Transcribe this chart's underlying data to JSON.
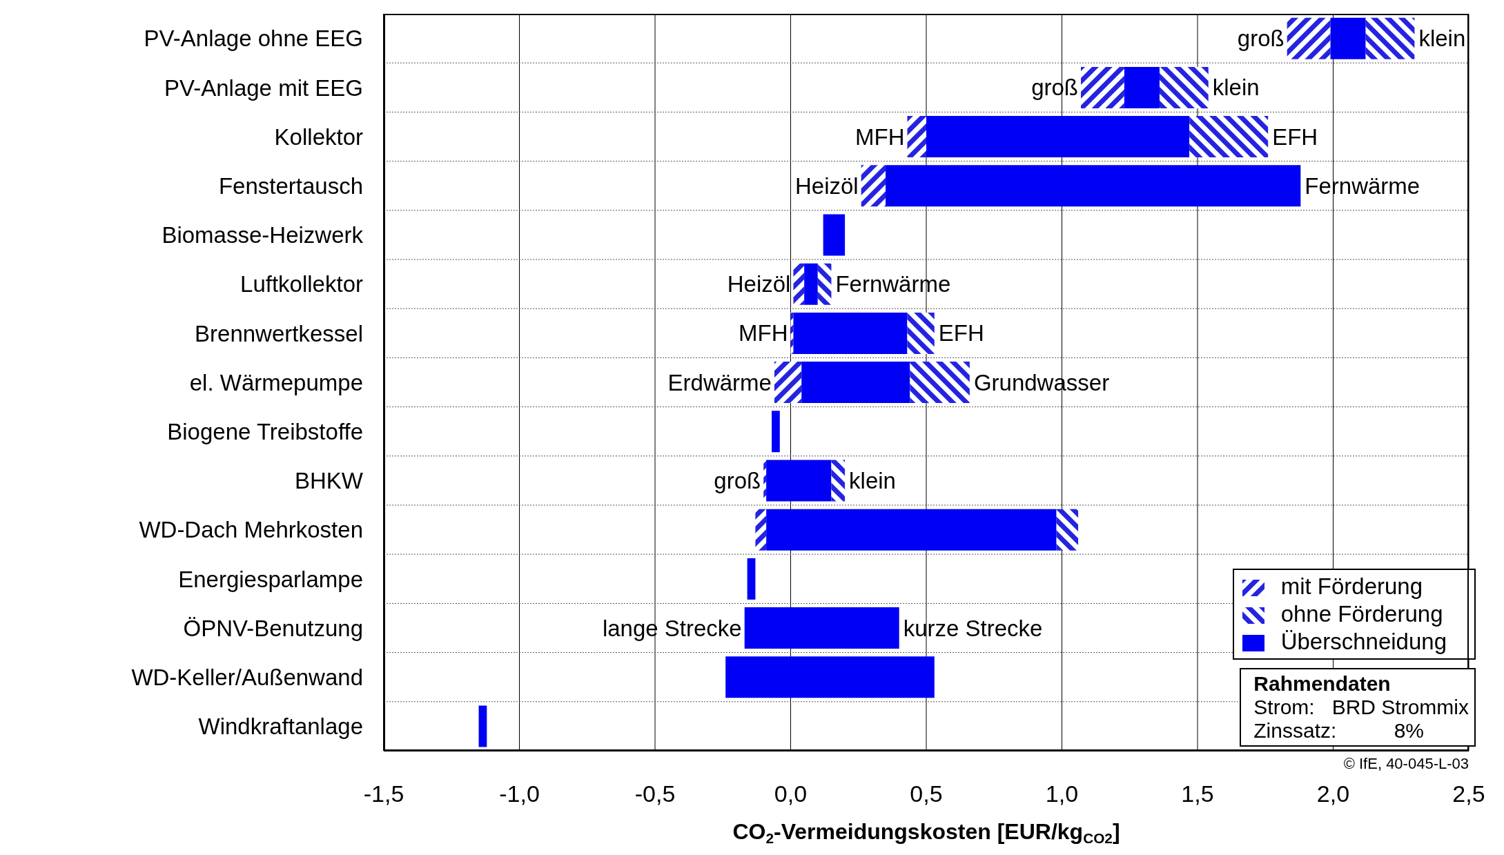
{
  "chart_data": {
    "type": "bar",
    "orientation": "horizontal",
    "categories": [
      "PV-Anlage ohne EEG",
      "PV-Anlage mit EEG",
      "Kollektor",
      "Fenstertausch",
      "Biomasse-Heizwerk",
      "Luftkollektor",
      "Brennwertkessel",
      "el. Wärmepumpe",
      "Biogene Treibstoffe",
      "BHKW",
      "WD-Dach Mehrkosten",
      "Energiesparlampe",
      "ÖPNV-Benutzung",
      "WD-Keller/Außenwand",
      "Windkraftanlage"
    ],
    "series": [
      {
        "name": "mit Förderung",
        "color": "#2424e0",
        "base": [
          1.83,
          1.07,
          0.43,
          0.26,
          null,
          0.01,
          0.0,
          -0.06,
          null,
          -0.1,
          -0.13,
          null,
          null,
          null,
          null
        ],
        "values": [
          0.16,
          0.16,
          0.07,
          0.09,
          null,
          0.04,
          0.01,
          0.1,
          null,
          0.01,
          0.04,
          null,
          null,
          null,
          null
        ]
      },
      {
        "name": "Überschneidung",
        "color": "#0000f5",
        "base": [
          1.99,
          1.23,
          0.5,
          0.35,
          0.12,
          0.05,
          0.01,
          0.04,
          -0.07,
          -0.09,
          -0.09,
          -0.16,
          -0.17,
          -0.24,
          -1.15
        ],
        "values": [
          0.13,
          0.13,
          0.97,
          1.53,
          0.08,
          0.05,
          0.42,
          0.4,
          0.03,
          0.24,
          1.07,
          0.03,
          0.57,
          0.77,
          0.03
        ]
      },
      {
        "name": "ohne Förderung",
        "color": "#2424e0",
        "base": [
          2.12,
          1.36,
          1.47,
          null,
          null,
          0.1,
          0.43,
          0.44,
          null,
          0.15,
          0.98,
          null,
          null,
          null,
          null
        ],
        "values": [
          0.18,
          0.18,
          0.29,
          null,
          null,
          0.05,
          0.1,
          0.22,
          null,
          0.05,
          0.08,
          null,
          null,
          null,
          null
        ]
      }
    ],
    "xlim": [
      -1.5,
      2.5
    ],
    "xticks": [
      {
        "value": -1.5,
        "label": "-1,5"
      },
      {
        "value": -1,
        "label": "-1,0"
      },
      {
        "value": -0.5,
        "label": "-0,5"
      },
      {
        "value": 0,
        "label": "0,0"
      },
      {
        "value": 0.5,
        "label": "0,5"
      },
      {
        "value": 1,
        "label": "1,0"
      },
      {
        "value": 1.5,
        "label": "1,5"
      },
      {
        "value": 2,
        "label": "2,0"
      },
      {
        "value": 2.5,
        "label": "2,5"
      }
    ],
    "xlabel": "CO$_{2}$-Vermeidungskosten [EUR/kg$_{CO2}$]",
    "grid": true,
    "legend": "bottom right",
    "annotations": [
      {
        "text": "groß",
        "x": 1.83,
        "y": "PV-Anlage ohne EEG"
      },
      {
        "text": "klein",
        "x": 2.3,
        "y": "PV-Anlage ohne EEG"
      },
      {
        "text": "groß",
        "x": 1.07,
        "y": "PV-Anlage mit EEG"
      },
      {
        "text": "klein",
        "x": 1.54,
        "y": "PV-Anlage mit EEG"
      },
      {
        "text": "MFH",
        "x": 0.43,
        "y": "Kollektor"
      },
      {
        "text": "EFH",
        "x": 1.76,
        "y": "Kollektor"
      },
      {
        "text": "Heizöl",
        "x": 0.26,
        "y": "Fenstertausch"
      },
      {
        "text": "Fernwärme",
        "x": 1.88,
        "y": "Fenstertausch"
      },
      {
        "text": "Heizöl",
        "x": 0.01,
        "y": "Luftkollektor"
      },
      {
        "text": "Fernwärme",
        "x": 0.15,
        "y": "Luftkollektor"
      },
      {
        "text": "MFH",
        "x": 0.0,
        "y": "Brennwertkessel"
      },
      {
        "text": "EFH",
        "x": 0.53,
        "y": "Brennwertkessel"
      },
      {
        "text": "Erdwärme",
        "x": -0.06,
        "y": "el. Wärmepumpe"
      },
      {
        "text": "Grundwasser",
        "x": 0.66,
        "y": "el. Wärmepumpe"
      },
      {
        "text": "groß",
        "x": -0.1,
        "y": "BHKW"
      },
      {
        "text": "klein",
        "x": 0.2,
        "y": "BHKW"
      },
      {
        "text": "lange Strecke",
        "x": -0.17,
        "y": "ÖPNV-Benutzung"
      },
      {
        "text": "kurze Strecke",
        "x": 0.4,
        "y": "ÖPNV-Benutzung"
      },
      "Rahmendaten",
      "Strom:   BRD Strommix",
      "Zinssatz:          8%",
      "© IfE, 40-045-L-03"
    ]
  }
}
